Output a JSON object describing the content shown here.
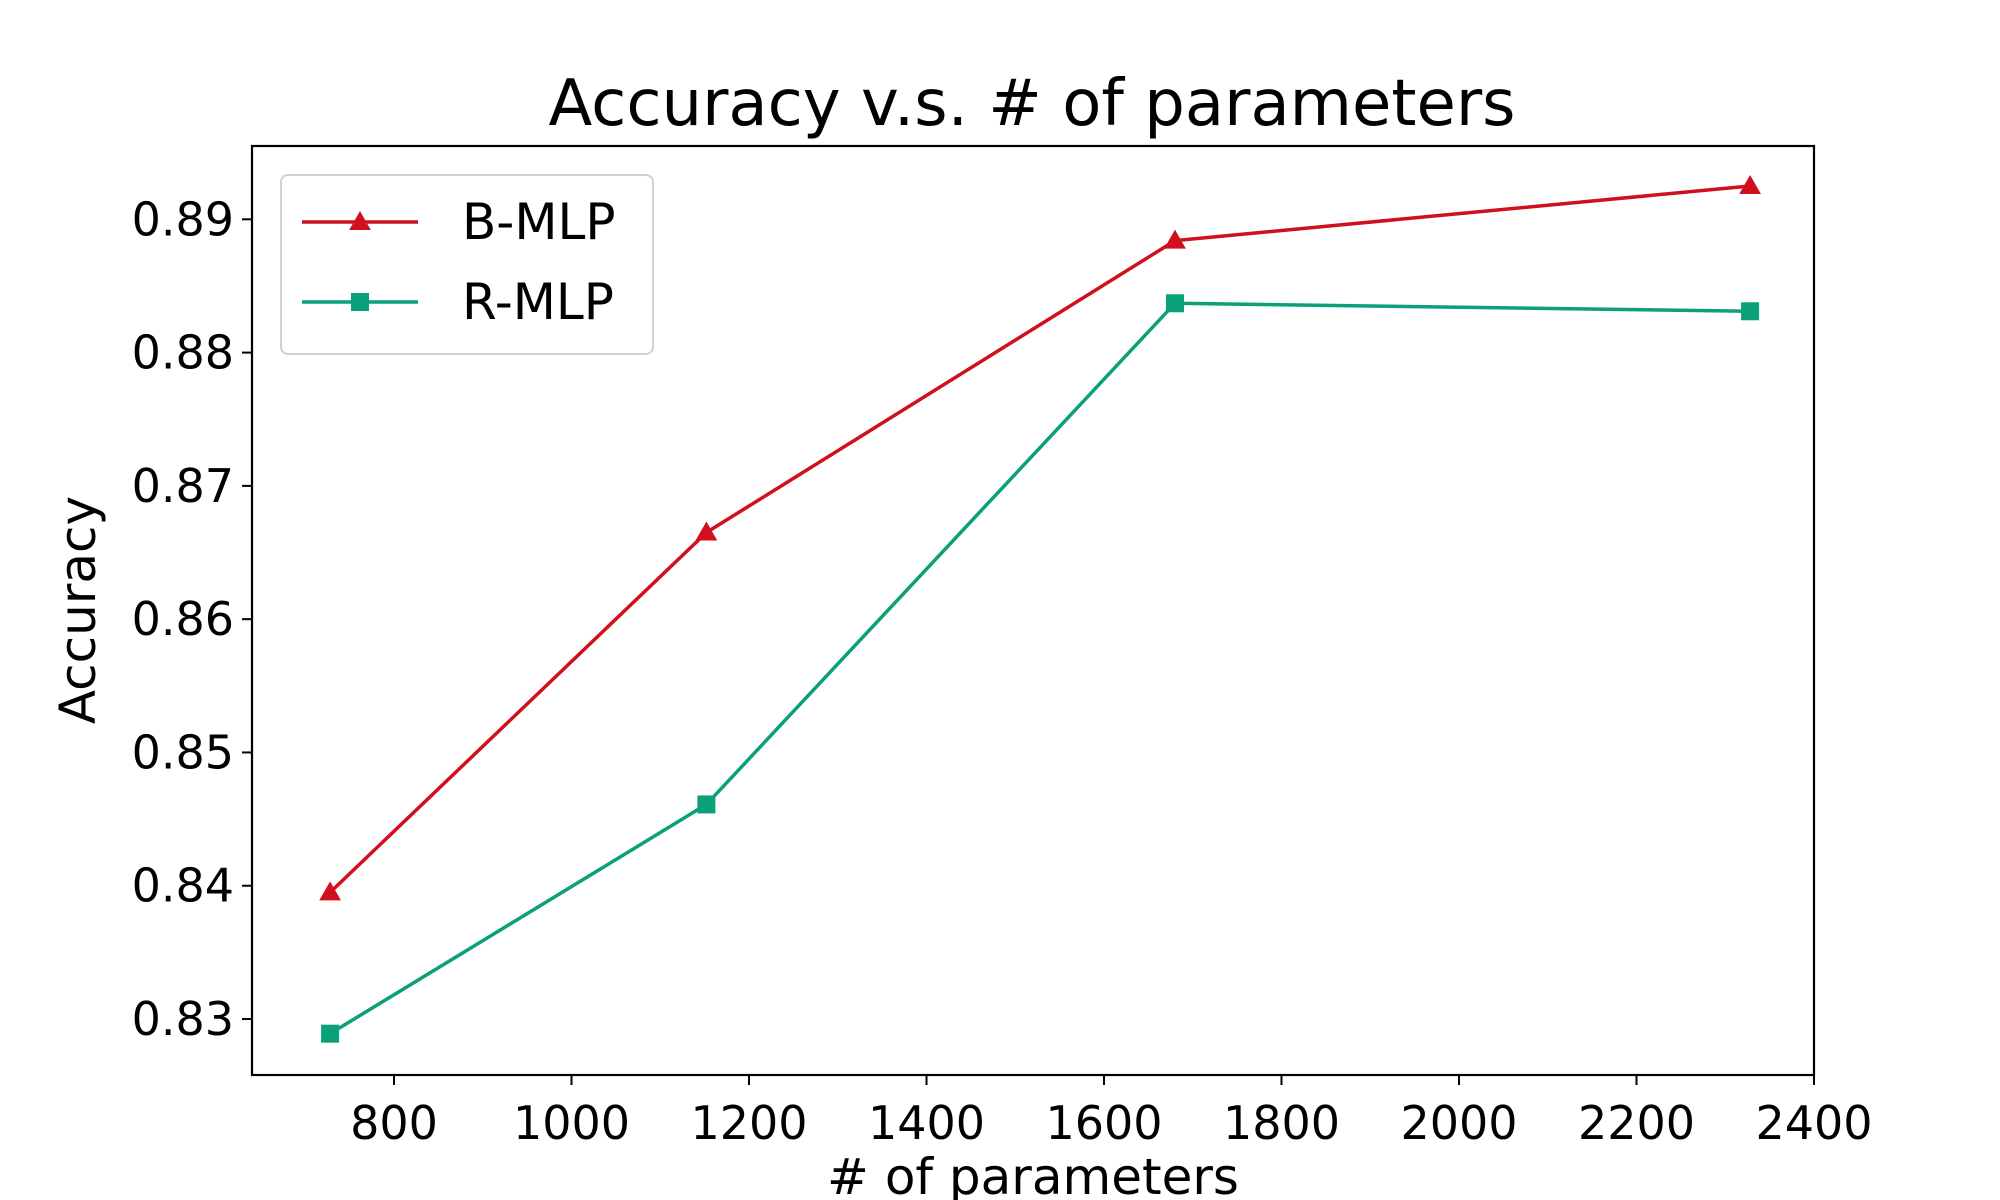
{
  "chart_data": {
    "type": "line",
    "title": "Accuracy v.s. # of parameters",
    "xlabel": "# of parameters",
    "ylabel": "Accuracy",
    "xlim": [
      640,
      2400
    ],
    "ylim": [
      0.8258,
      0.8955
    ],
    "xticks": [
      800,
      1000,
      1200,
      1400,
      1600,
      1800,
      2000,
      2200,
      2400
    ],
    "yticks": [
      0.83,
      0.84,
      0.85,
      0.86,
      0.87,
      0.88,
      0.89
    ],
    "xtick_labels": [
      "800",
      "1000",
      "1200",
      "1400",
      "1600",
      "1800",
      "2000",
      "2200",
      "2400"
    ],
    "ytick_labels": [
      "0.83",
      "0.84",
      "0.85",
      "0.86",
      "0.87",
      "0.88",
      "0.89"
    ],
    "grid": false,
    "legend_position": "top-left",
    "series": [
      {
        "name": "B-MLP",
        "color": "#d0101c",
        "marker": "triangle",
        "x": [
          728,
          1152,
          1680,
          2328
        ],
        "y": [
          0.8395,
          0.8665,
          0.8884,
          0.8925
        ]
      },
      {
        "name": "R-MLP",
        "color": "#0aa07a",
        "marker": "square",
        "x": [
          728,
          1152,
          1680,
          2328
        ],
        "y": [
          0.8289,
          0.8461,
          0.8837,
          0.8831
        ]
      }
    ]
  }
}
